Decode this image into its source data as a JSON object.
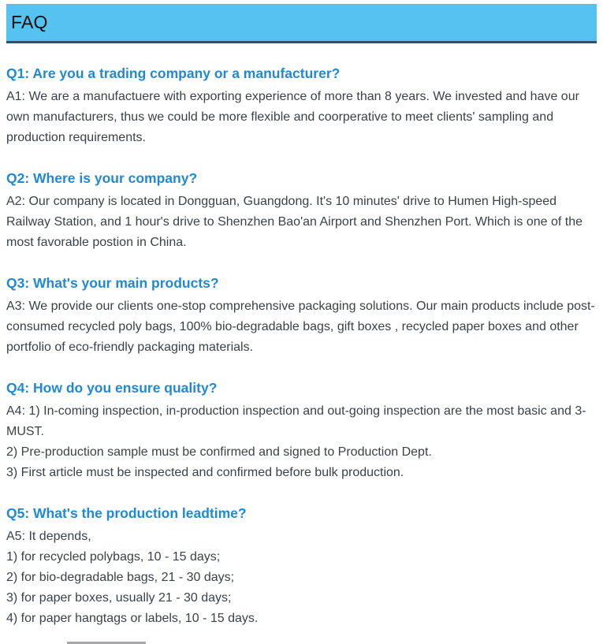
{
  "header": {
    "title": "FAQ"
  },
  "colors": {
    "header_bg": "#55c3f1",
    "header_border": "#31516a",
    "question_text": "#2089d5",
    "body_text": "#3a4149"
  },
  "faqs": [
    {
      "question": "Q1: Are you a trading company or a manufacturer?",
      "lines": [
        "A1: We are a manufactuere with exporting experience of more than 8 years. We invested and have our own manufacturers, thus we could be more flexible and coorperative to meet clients' sampling and production requirements."
      ]
    },
    {
      "question": "Q2: Where is your company?",
      "lines": [
        "A2: Our company is located in Dongguan, Guangdong. It's 10 minutes' drive to Humen High-speed Railway Station, and 1 hour's drive to Shenzhen Bao'an Airport and Shenzhen Port. Which is one of the most favorable postion in China."
      ]
    },
    {
      "question": "Q3: What's your main products?",
      "lines": [
        "A3: We provide our clients one-stop comprehensive packaging solutions. Our main products include post-consumed recycled poly bags, 100% bio-degradable bags, gift boxes , recycled paper boxes and other portfolio of eco-friendly packaging materials."
      ]
    },
    {
      "question": "Q4: How do you ensure quality?",
      "lines": [
        "A4: 1) In-coming inspection, in-production inspection and out-going inspection are the most basic and 3-MUST.",
        "2) Pre-production sample must be confirmed and signed to Production Dept.",
        "3) First article must be inspected and confirmed before bulk production."
      ]
    },
    {
      "question": "Q5: What's the production leadtime?",
      "lines": [
        "A5: It depends,",
        "1) for recycled polybags, 10 - 15 days;",
        "2) for bio-degradable bags, 21 - 30 days;",
        "3) for paper boxes, usually 21 - 30 days;",
        "4) for paper hangtags or labels, 10 - 15 days."
      ]
    }
  ]
}
